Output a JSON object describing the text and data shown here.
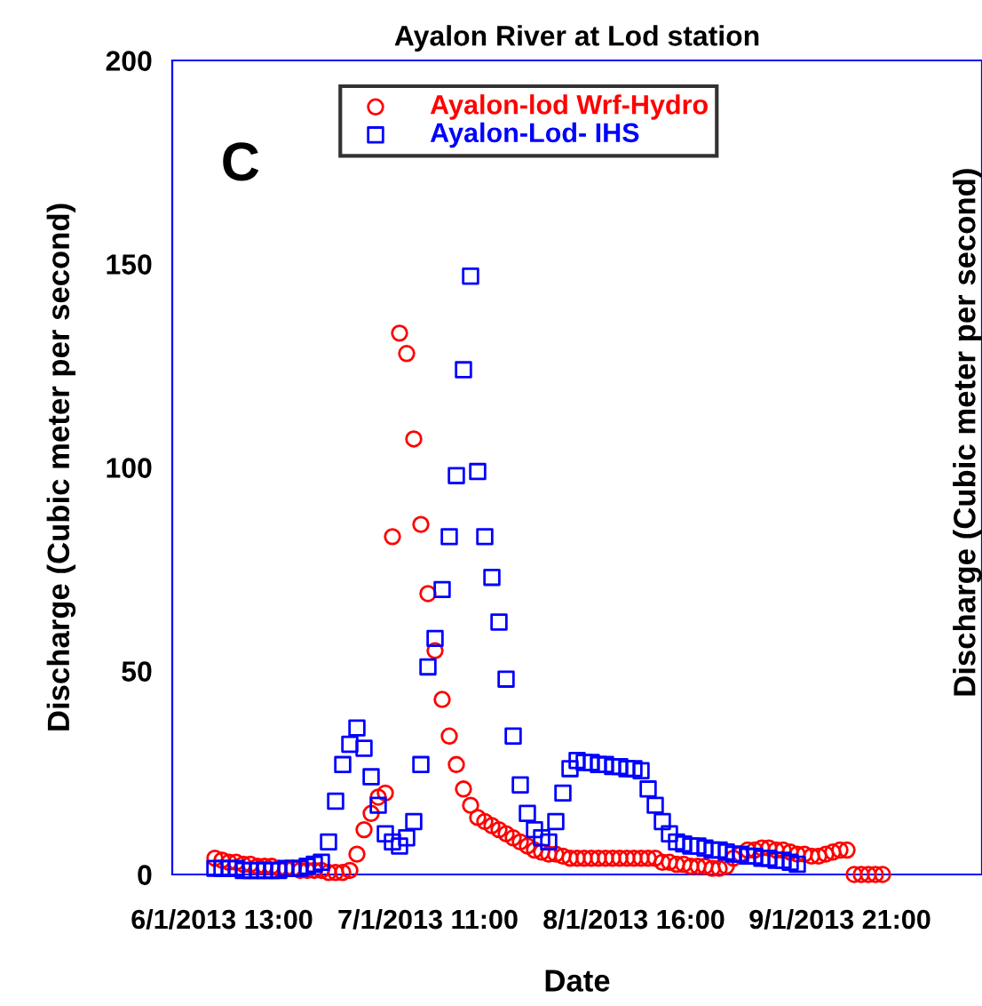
{
  "chart_data": {
    "type": "scatter",
    "title": "Ayalon River at Lod station",
    "xlabel": "Date",
    "ylabel": "Discharge (Cubic meter per second)",
    "annotations": [
      "C",
      "Discharge (Cubic meter per second)"
    ],
    "categories": [
      null,
      "6/1/2013 13:00",
      null,
      null,
      null,
      null,
      null,
      null,
      null,
      null,
      null,
      null,
      null,
      null,
      null,
      null,
      null,
      null,
      null,
      null,
      null,
      null,
      null,
      null,
      null,
      null,
      null,
      null,
      null,
      null,
      "7/1/2013 11:00",
      null,
      null,
      null,
      null,
      null,
      null,
      null,
      null,
      null,
      null,
      null,
      null,
      null,
      null,
      null,
      null,
      null,
      null,
      null,
      null,
      null,
      null,
      null,
      null,
      null,
      null,
      null,
      null,
      "8/1/2013 16:00",
      null,
      null,
      null,
      null,
      null,
      null,
      null,
      null,
      null,
      null,
      null,
      null,
      null,
      null,
      null,
      null,
      null,
      null,
      null,
      null,
      null,
      null,
      null,
      null,
      null,
      null,
      null,
      null,
      "9/1/2013 21:00",
      null,
      null,
      null,
      null,
      null,
      null
    ],
    "ylim": [
      0,
      200
    ],
    "yticks": [
      0,
      50,
      100,
      150,
      200
    ],
    "grid": false,
    "legend": "top",
    "series": [
      {
        "name": "Ayalon-lod Wrf-Hydro",
        "color": "#ff0000",
        "marker": "circle",
        "values": [
          4,
          3.5,
          3,
          3,
          2.5,
          2.5,
          2,
          2,
          2,
          1.5,
          1.5,
          1.5,
          1,
          1,
          1,
          1,
          0.5,
          0.5,
          0.5,
          1,
          5,
          11,
          15,
          19,
          20,
          83,
          133,
          128,
          107,
          86,
          69,
          55,
          43,
          34,
          27,
          21,
          17,
          14,
          13,
          12,
          11,
          10,
          9,
          8,
          7,
          6,
          5.5,
          5,
          5,
          4.5,
          4,
          4,
          4,
          4,
          4,
          4,
          4,
          4,
          4,
          4,
          4,
          4,
          4,
          3,
          3,
          2.5,
          2.5,
          2,
          2,
          2,
          1.5,
          1.5,
          2,
          4,
          5,
          6,
          6,
          6.5,
          6.5,
          6,
          6,
          5.5,
          5,
          5,
          4.5,
          4.5,
          5,
          5.5,
          6,
          6,
          0,
          0,
          0,
          0,
          0
        ]
      },
      {
        "name": "Ayalon-Lod- IHS",
        "color": "#0000ff",
        "marker": "square",
        "values": [
          1.5,
          1.5,
          1.5,
          1.5,
          1,
          1,
          1,
          1,
          1,
          1,
          1.5,
          1.5,
          1.5,
          2,
          2.5,
          3,
          8,
          18,
          27,
          32,
          36,
          31,
          24,
          17,
          10,
          8,
          7,
          9,
          13,
          27,
          51,
          58,
          70,
          83,
          98,
          124,
          147,
          99,
          83,
          73,
          62,
          48,
          34,
          22,
          15,
          11,
          9,
          8,
          13,
          20,
          26,
          28,
          27.5,
          27.5,
          27,
          27,
          26.5,
          26.5,
          26,
          26,
          25.5,
          21,
          17,
          13,
          10,
          8,
          7.5,
          7,
          7,
          6.5,
          6,
          6,
          5.5,
          5,
          5,
          4.5,
          4.5,
          4,
          4,
          3.5,
          3.5,
          3,
          2.5,
          null,
          null,
          null,
          null,
          null,
          null,
          null,
          null,
          null,
          null,
          null,
          null
        ]
      }
    ]
  }
}
